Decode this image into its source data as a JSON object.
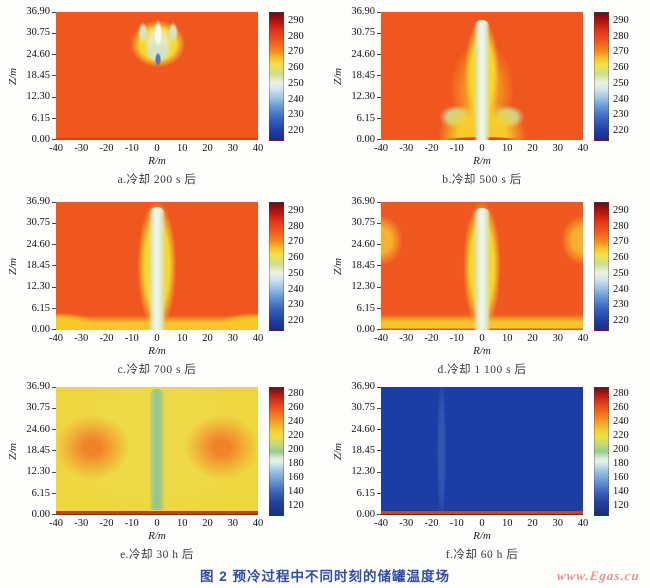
{
  "figure": {
    "caption": "图 2  预冷过程中不同时刻的储罐温度场",
    "watermark": "www.Egas.cu"
  },
  "axes": {
    "x_label": "R/m",
    "y_label": "Z/m",
    "x_ticks": [
      "-40",
      "-30",
      "-20",
      "-10",
      "0",
      "10",
      "20",
      "30",
      "40"
    ],
    "y_ticks": [
      "36.90",
      "30.75",
      "24.60",
      "18.45",
      "12.30",
      "6.15",
      "0.00"
    ],
    "cb_hi_ticks": [
      "290",
      "280",
      "270",
      "260",
      "250",
      "240",
      "230",
      "220"
    ],
    "cb_lo_ticks": [
      "280",
      "260",
      "240",
      "220",
      "200",
      "180",
      "160",
      "140",
      "120"
    ]
  },
  "panels": [
    {
      "id": "a",
      "caption": "a.冷却 200 s 后"
    },
    {
      "id": "b",
      "caption": "b.冷却 500 s 后"
    },
    {
      "id": "c",
      "caption": "c.冷却 700 s 后"
    },
    {
      "id": "d",
      "caption": "d.冷却 1 100 s 后"
    },
    {
      "id": "e",
      "caption": "e.冷却 30 h 后"
    },
    {
      "id": "f",
      "caption": "f.冷却 60 h 后"
    }
  ],
  "colors": {
    "background_orange": "#f0571f",
    "fringe_yellow": "#f6d72e",
    "pale_core": "#eef3e4",
    "cold_pocket_blue": "#4a77c4",
    "bulk_cold_blue": "#1c3da6",
    "bulk_cooled_yellow": "#eed63e",
    "floor_red": "#c24218",
    "figure_caption_blue": "#2f4da8",
    "watermark_red": "#eb8f8f"
  },
  "chart_data": [
    {
      "type": "heatmap",
      "panel": "a",
      "title": "a.冷却 200 s 后",
      "xlabel": "R/m",
      "ylabel": "Z/m",
      "xlim": [
        -40,
        40
      ],
      "ylim": [
        0,
        36.9
      ],
      "x_ticks": [
        -40,
        -30,
        -20,
        -10,
        0,
        10,
        20,
        30,
        40
      ],
      "y_ticks": [
        0.0,
        6.15,
        12.3,
        18.45,
        24.6,
        30.75,
        36.9
      ],
      "colorbar_ticks": [
        290,
        280,
        270,
        260,
        250,
        240,
        230,
        220
      ],
      "colorbar_range": [
        218,
        296
      ],
      "background_level": 284,
      "features": [
        {
          "label": "cold spray plume under roof",
          "r_range": [
            -13,
            13
          ],
          "z_range": [
            19,
            36
          ],
          "fringe_level": 268,
          "core_level": 252,
          "min_level": 226,
          "shape": "mushroom/trident lobes with pale core; small dark-blue pocket at R≈0, Z≈22–26 m"
        }
      ]
    },
    {
      "type": "heatmap",
      "panel": "b",
      "title": "b.冷却 500 s 后",
      "xlabel": "R/m",
      "ylabel": "Z/m",
      "xlim": [
        -40,
        40
      ],
      "ylim": [
        0,
        36.9
      ],
      "x_ticks": [
        -40,
        -30,
        -20,
        -10,
        0,
        10,
        20,
        30,
        40
      ],
      "y_ticks": [
        0.0,
        6.15,
        12.3,
        18.45,
        24.6,
        30.75,
        36.9
      ],
      "colorbar_ticks": [
        290,
        280,
        270,
        260,
        250,
        240,
        230,
        220
      ],
      "colorbar_range": [
        218,
        296
      ],
      "background_level": 283,
      "features": [
        {
          "label": "axial cold jet column",
          "r_range": [
            -5,
            5
          ],
          "z_range": [
            0,
            35.5
          ],
          "core_level": 252
        },
        {
          "label": "yellow envelope widening toward floor",
          "r_range": [
            -20,
            20
          ],
          "z_range": [
            0,
            12
          ],
          "level": 268
        },
        {
          "label": "recirculation lobes",
          "r_range": [
            -16,
            -8
          ],
          "z_range": [
            1,
            8
          ],
          "level": 262,
          "mirrored": true
        },
        {
          "label": "warm strip on floor centre",
          "r_range": [
            -17,
            17
          ],
          "z_range": [
            0,
            0.8
          ],
          "level": 288
        }
      ]
    },
    {
      "type": "heatmap",
      "panel": "c",
      "title": "c.冷却 700 s 后",
      "xlabel": "R/m",
      "ylabel": "Z/m",
      "xlim": [
        -40,
        40
      ],
      "ylim": [
        0,
        36.9
      ],
      "x_ticks": [
        -40,
        -30,
        -20,
        -10,
        0,
        10,
        20,
        30,
        40
      ],
      "y_ticks": [
        0.0,
        6.15,
        12.3,
        18.45,
        24.6,
        30.75,
        36.9
      ],
      "colorbar_ticks": [
        290,
        280,
        270,
        260,
        250,
        240,
        230,
        220
      ],
      "colorbar_range": [
        218,
        296
      ],
      "background_level": 283,
      "features": [
        {
          "label": "established cold column",
          "r_range": [
            -6,
            6
          ],
          "z_range": [
            0,
            36
          ],
          "core_level": 252,
          "fringe_level": 268
        },
        {
          "label": "cold layer spreading along floor to walls",
          "r_range": [
            -40,
            40
          ],
          "z_range": [
            0,
            4
          ],
          "level": 268,
          "shape": "stronger yellow pockets in bottom corners"
        }
      ]
    },
    {
      "type": "heatmap",
      "panel": "d",
      "title": "d.冷却 1 100 s 后",
      "xlabel": "R/m",
      "ylabel": "Z/m",
      "xlim": [
        -40,
        40
      ],
      "ylim": [
        0,
        36.9
      ],
      "x_ticks": [
        -40,
        -30,
        -20,
        -10,
        0,
        10,
        20,
        30,
        40
      ],
      "y_ticks": [
        0.0,
        6.15,
        12.3,
        18.45,
        24.6,
        30.75,
        36.9
      ],
      "colorbar_ticks": [
        290,
        280,
        270,
        260,
        250,
        240,
        230,
        220
      ],
      "colorbar_range": [
        218,
        296
      ],
      "background_level": 282,
      "features": [
        {
          "label": "axial cold column",
          "r_range": [
            -6,
            6
          ],
          "z_range": [
            0,
            36
          ],
          "core_level": 252,
          "fringe_level": 268
        },
        {
          "label": "cooled patches on side walls",
          "r_range": [
            -40,
            -34
          ],
          "z_range": [
            16,
            30
          ],
          "level": 272,
          "mirrored": true
        },
        {
          "label": "cold floor layer full width",
          "r_range": [
            -40,
            40
          ],
          "z_range": [
            0,
            3
          ],
          "level": 268
        }
      ]
    },
    {
      "type": "heatmap",
      "panel": "e",
      "title": "e.冷却 30 h 后",
      "xlabel": "R/m",
      "ylabel": "Z/m",
      "xlim": [
        -40,
        40
      ],
      "ylim": [
        0,
        36.9
      ],
      "x_ticks": [
        -40,
        -30,
        -20,
        -10,
        0,
        10,
        20,
        30,
        40
      ],
      "y_ticks": [
        0.0,
        6.15,
        12.3,
        18.45,
        24.6,
        30.75,
        36.9
      ],
      "colorbar_ticks": [
        280,
        260,
        240,
        220,
        200,
        180,
        160,
        140,
        120
      ],
      "colorbar_range": [
        115,
        290
      ],
      "background_level": 228,
      "features": [
        {
          "label": "warmer toroidal lobes",
          "r_range": [
            -36,
            -12
          ],
          "z_range": [
            8,
            28
          ],
          "level": 246,
          "mirrored": true
        },
        {
          "label": "cold axis column",
          "r_range": [
            -4,
            4
          ],
          "z_range": [
            1,
            36
          ],
          "level": 205
        },
        {
          "label": "warm floor boundary strip",
          "r_range": [
            -40,
            40
          ],
          "z_range": [
            0,
            1
          ],
          "level": 285
        }
      ]
    },
    {
      "type": "heatmap",
      "panel": "f",
      "title": "f.冷却 60 h 后",
      "xlabel": "R/m",
      "ylabel": "Z/m",
      "xlim": [
        -40,
        40
      ],
      "ylim": [
        0,
        36.9
      ],
      "x_ticks": [
        -40,
        -30,
        -20,
        -10,
        0,
        10,
        20,
        30,
        40
      ],
      "y_ticks": [
        0.0,
        6.15,
        12.3,
        18.45,
        24.6,
        30.75,
        36.9
      ],
      "colorbar_ticks": [
        280,
        260,
        240,
        220,
        200,
        180,
        160,
        140,
        120
      ],
      "colorbar_range": [
        115,
        290
      ],
      "background_level": 127,
      "features": [
        {
          "label": "uniform deep-blue cold bulk",
          "r_range": [
            -40,
            40
          ],
          "z_range": [
            1,
            36.9
          ],
          "level": 127
        },
        {
          "label": "warm floor boundary strip",
          "r_range": [
            -40,
            40
          ],
          "z_range": [
            0,
            1
          ],
          "level": 270
        }
      ]
    }
  ]
}
